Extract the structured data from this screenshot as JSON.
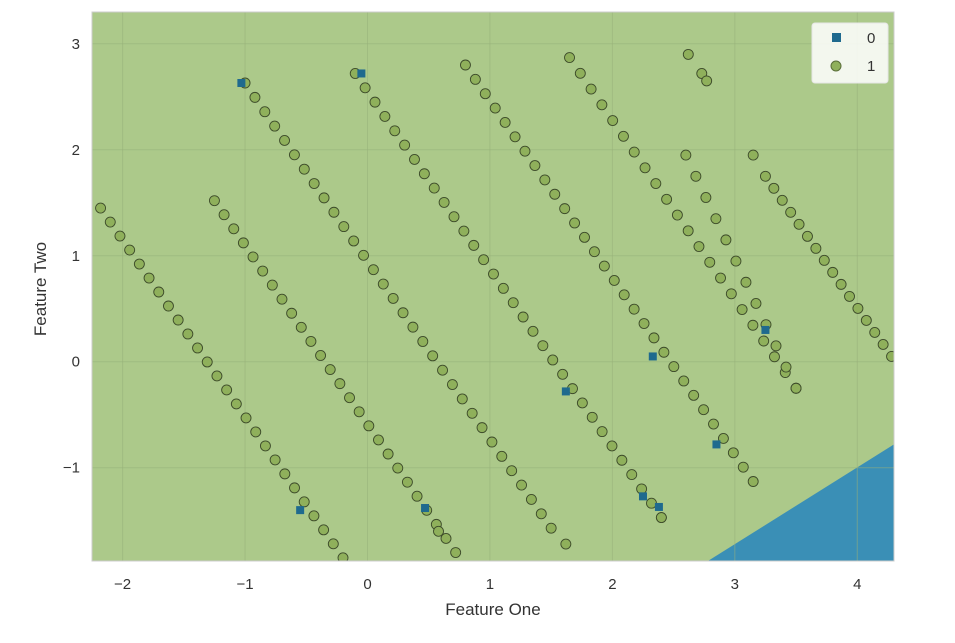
{
  "chart_data": {
    "type": "scatter",
    "title": "",
    "xlabel": "Feature One",
    "ylabel": "Feature Two",
    "xlim": [
      -2.25,
      4.3
    ],
    "ylim": [
      -1.88,
      3.3
    ],
    "xticks": [
      -2,
      -1,
      0,
      1,
      2,
      3,
      4
    ],
    "yticks": [
      -1,
      0,
      1,
      2,
      3
    ],
    "xtick_labels": [
      "−2",
      "−1",
      "0",
      "1",
      "2",
      "3",
      "4"
    ],
    "ytick_labels": [
      "−1",
      "0",
      "1",
      "2",
      "3"
    ],
    "grid": true,
    "legend_position": "top-right",
    "background_region": {
      "class": "1",
      "color": "#acc98a"
    },
    "decision_region": {
      "class": "0",
      "color": "#3a8fb6",
      "polygon": [
        [
          2.78,
          -1.88
        ],
        [
          4.3,
          -0.78
        ],
        [
          4.3,
          -1.88
        ]
      ]
    },
    "series": [
      {
        "name": "0",
        "marker": "square",
        "color": "#1f6a8e",
        "points": [
          [
            2.25,
            -1.27
          ],
          [
            2.38,
            -1.37
          ],
          [
            2.85,
            -0.78
          ],
          [
            -0.55,
            -1.4
          ],
          [
            0.47,
            -1.38
          ],
          [
            1.62,
            -0.28
          ],
          [
            2.33,
            0.05
          ],
          [
            3.25,
            0.3
          ],
          [
            -0.05,
            2.72
          ],
          [
            -1.03,
            2.63
          ]
        ]
      },
      {
        "name": "1",
        "marker": "circle",
        "color": "#8fb05b",
        "bands": [
          {
            "x0": -2.18,
            "y0": 1.45,
            "x1": -0.2,
            "y1": -1.85,
            "count": 26
          },
          {
            "x0": -1.25,
            "y0": 1.52,
            "x1": 0.72,
            "y1": -1.8,
            "count": 26
          },
          {
            "x0": -1.0,
            "y0": 2.63,
            "x1": 1.5,
            "y1": -1.57,
            "count": 32
          },
          {
            "x0": -0.1,
            "y0": 2.72,
            "x1": 2.4,
            "y1": -1.47,
            "count": 32
          },
          {
            "x0": 0.8,
            "y0": 2.8,
            "x1": 3.15,
            "y1": -1.13,
            "count": 30
          },
          {
            "x0": 1.65,
            "y0": 2.87,
            "x1": 3.5,
            "y1": -0.25,
            "count": 22
          },
          {
            "x0": 2.6,
            "y0": 1.95,
            "x1": 3.5,
            "y1": -0.25,
            "count": 12
          },
          {
            "x0": 3.25,
            "y0": 1.75,
            "x1": 4.28,
            "y1": 0.05,
            "count": 16
          }
        ],
        "extra_points": [
          [
            2.62,
            2.9
          ],
          [
            2.73,
            2.72
          ],
          [
            2.77,
            2.65
          ],
          [
            3.15,
            1.95
          ],
          [
            1.62,
            -1.72
          ],
          [
            0.58,
            -1.6
          ],
          [
            2.4,
            -1.47
          ]
        ]
      }
    ]
  }
}
